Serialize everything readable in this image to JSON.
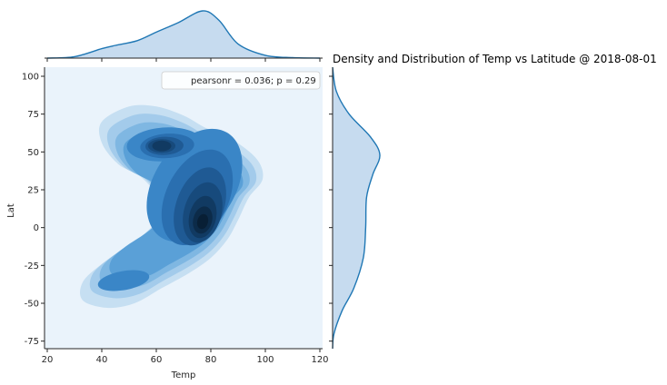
{
  "chart_data": {
    "type": "kde-jointplot",
    "title": "Density and Distribution of Temp vs Latitude @ 2018-08-01",
    "xlabel": "Temp",
    "ylabel": "Lat",
    "xlim": [
      19,
      121
    ],
    "ylim": [
      -80,
      106
    ],
    "xticks": [
      20,
      40,
      60,
      80,
      100,
      120
    ],
    "yticks": [
      -75,
      -50,
      -25,
      0,
      25,
      50,
      75,
      100
    ],
    "annotation": "pearsonr = 0.036; p = 0.29",
    "legend_position": "top-right",
    "colors": {
      "line": "#1f77b4",
      "fill": "#c6dbef",
      "background": "#eaf3fb",
      "levels": [
        "#c6dff2",
        "#a3cbeb",
        "#7fb7e2",
        "#5aa0d7",
        "#3a86c7",
        "#2a6fb0",
        "#1f5a94",
        "#174a7c",
        "#113a62",
        "#0c2b49",
        "#081f35"
      ]
    },
    "density_peaks": [
      {
        "x": 77,
        "y": 5,
        "weight": 1.0
      },
      {
        "x": 62,
        "y": 54,
        "weight": 0.75
      },
      {
        "x": 45,
        "y": -38,
        "weight": 0.28
      }
    ],
    "marginal_x": [
      {
        "x": 20,
        "d": 0.0
      },
      {
        "x": 30,
        "d": 0.03
      },
      {
        "x": 40,
        "d": 0.2
      },
      {
        "x": 45,
        "d": 0.27
      },
      {
        "x": 53,
        "d": 0.37
      },
      {
        "x": 60,
        "d": 0.55
      },
      {
        "x": 68,
        "d": 0.75
      },
      {
        "x": 77,
        "d": 1.0
      },
      {
        "x": 83,
        "d": 0.8
      },
      {
        "x": 90,
        "d": 0.3
      },
      {
        "x": 100,
        "d": 0.06
      },
      {
        "x": 110,
        "d": 0.01
      },
      {
        "x": 120,
        "d": 0.0
      }
    ],
    "marginal_y": [
      {
        "y": -80,
        "d": 0.0
      },
      {
        "y": -70,
        "d": 0.03
      },
      {
        "y": -55,
        "d": 0.2
      },
      {
        "y": -40,
        "d": 0.45
      },
      {
        "y": -20,
        "d": 0.65
      },
      {
        "y": 0,
        "d": 0.7
      },
      {
        "y": 20,
        "d": 0.72
      },
      {
        "y": 35,
        "d": 0.85
      },
      {
        "y": 48,
        "d": 1.0
      },
      {
        "y": 60,
        "d": 0.8
      },
      {
        "y": 75,
        "d": 0.35
      },
      {
        "y": 90,
        "d": 0.08
      },
      {
        "y": 106,
        "d": 0.0
      }
    ]
  }
}
